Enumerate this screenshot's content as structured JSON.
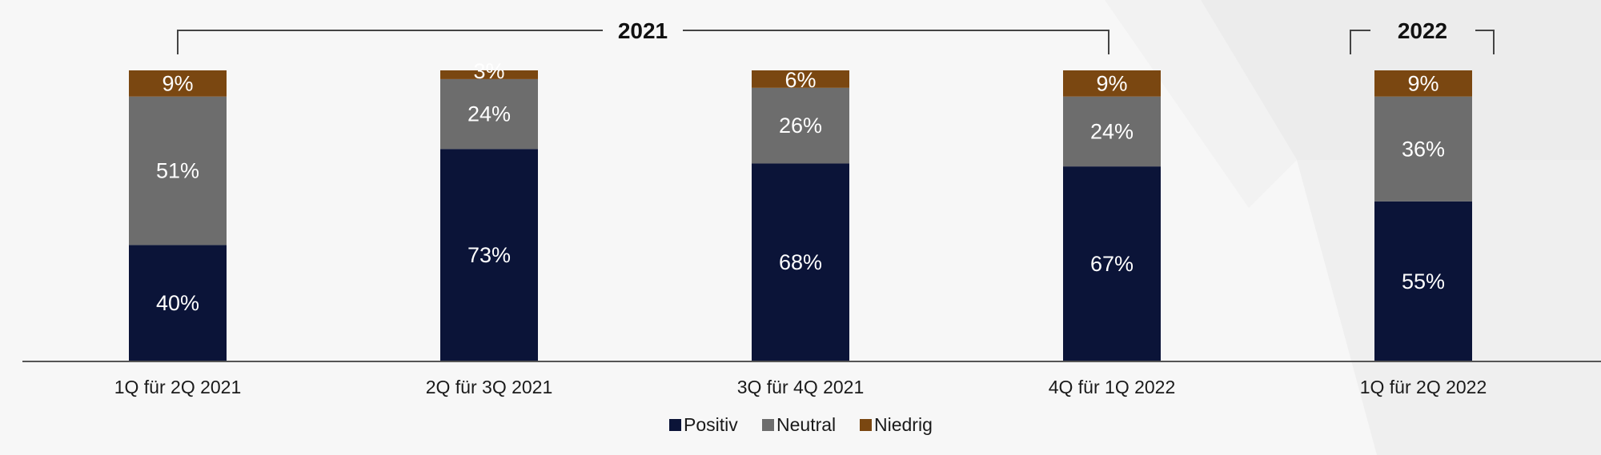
{
  "chart_data": {
    "type": "bar",
    "stacked": true,
    "categories": [
      "1Q für 2Q 2021",
      "2Q für 3Q 2021",
      "3Q für 4Q 2021",
      "4Q für 1Q 2022",
      "1Q für 2Q 2022"
    ],
    "series": [
      {
        "name": "Positiv",
        "color": "#0b1438",
        "values": [
          40,
          73,
          68,
          67,
          55
        ],
        "labels": [
          "40%",
          "73%",
          "68%",
          "67%",
          "55%"
        ]
      },
      {
        "name": "Neutral",
        "color": "#6d6d6d",
        "values": [
          51,
          24,
          26,
          24,
          36
        ],
        "labels": [
          "51%",
          "24%",
          "26%",
          "24%",
          "36%"
        ]
      },
      {
        "name": "Niedrig",
        "color": "#7a4711",
        "values": [
          9,
          3,
          6,
          9,
          9
        ],
        "labels": [
          "9%",
          "3%",
          "6%",
          "9%",
          "9%"
        ]
      }
    ],
    "ylim": [
      0,
      100
    ],
    "legend_position": "bottom",
    "grid": false,
    "groups": [
      {
        "label": "2021",
        "from_category": 0,
        "to_category": 3
      },
      {
        "label": "2022",
        "from_category": 4,
        "to_category": 4
      }
    ]
  }
}
